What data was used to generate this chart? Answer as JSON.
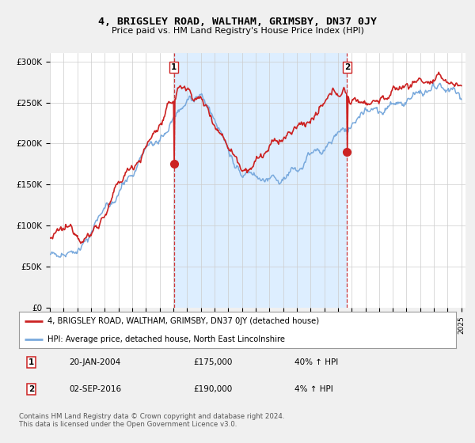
{
  "title": "4, BRIGSLEY ROAD, WALTHAM, GRIMSBY, DN37 0JY",
  "subtitle": "Price paid vs. HM Land Registry's House Price Index (HPI)",
  "background_color": "#f0f0f0",
  "plot_bg_color": "#ffffff",
  "ylim": [
    0,
    310000
  ],
  "yticks": [
    0,
    50000,
    100000,
    150000,
    200000,
    250000,
    300000
  ],
  "ytick_labels": [
    "£0",
    "£50K",
    "£100K",
    "£150K",
    "£200K",
    "£250K",
    "£300K"
  ],
  "hpi_color": "#7aaadd",
  "price_color": "#cc2222",
  "shade_color": "#ddeeff",
  "transaction1_date": 2004.05,
  "transaction1_label": "1",
  "transaction2_date": 2016.67,
  "transaction2_label": "2",
  "legend_line1": "4, BRIGSLEY ROAD, WALTHAM, GRIMSBY, DN37 0JY (detached house)",
  "legend_line2": "HPI: Average price, detached house, North East Lincolnshire",
  "info1_num": "1",
  "info1_date": "20-JAN-2004",
  "info1_price": "£175,000",
  "info1_hpi": "40% ↑ HPI",
  "info2_num": "2",
  "info2_date": "02-SEP-2016",
  "info2_price": "£190,000",
  "info2_hpi": "4% ↑ HPI",
  "footnote": "Contains HM Land Registry data © Crown copyright and database right 2024.\nThis data is licensed under the Open Government Licence v3.0."
}
